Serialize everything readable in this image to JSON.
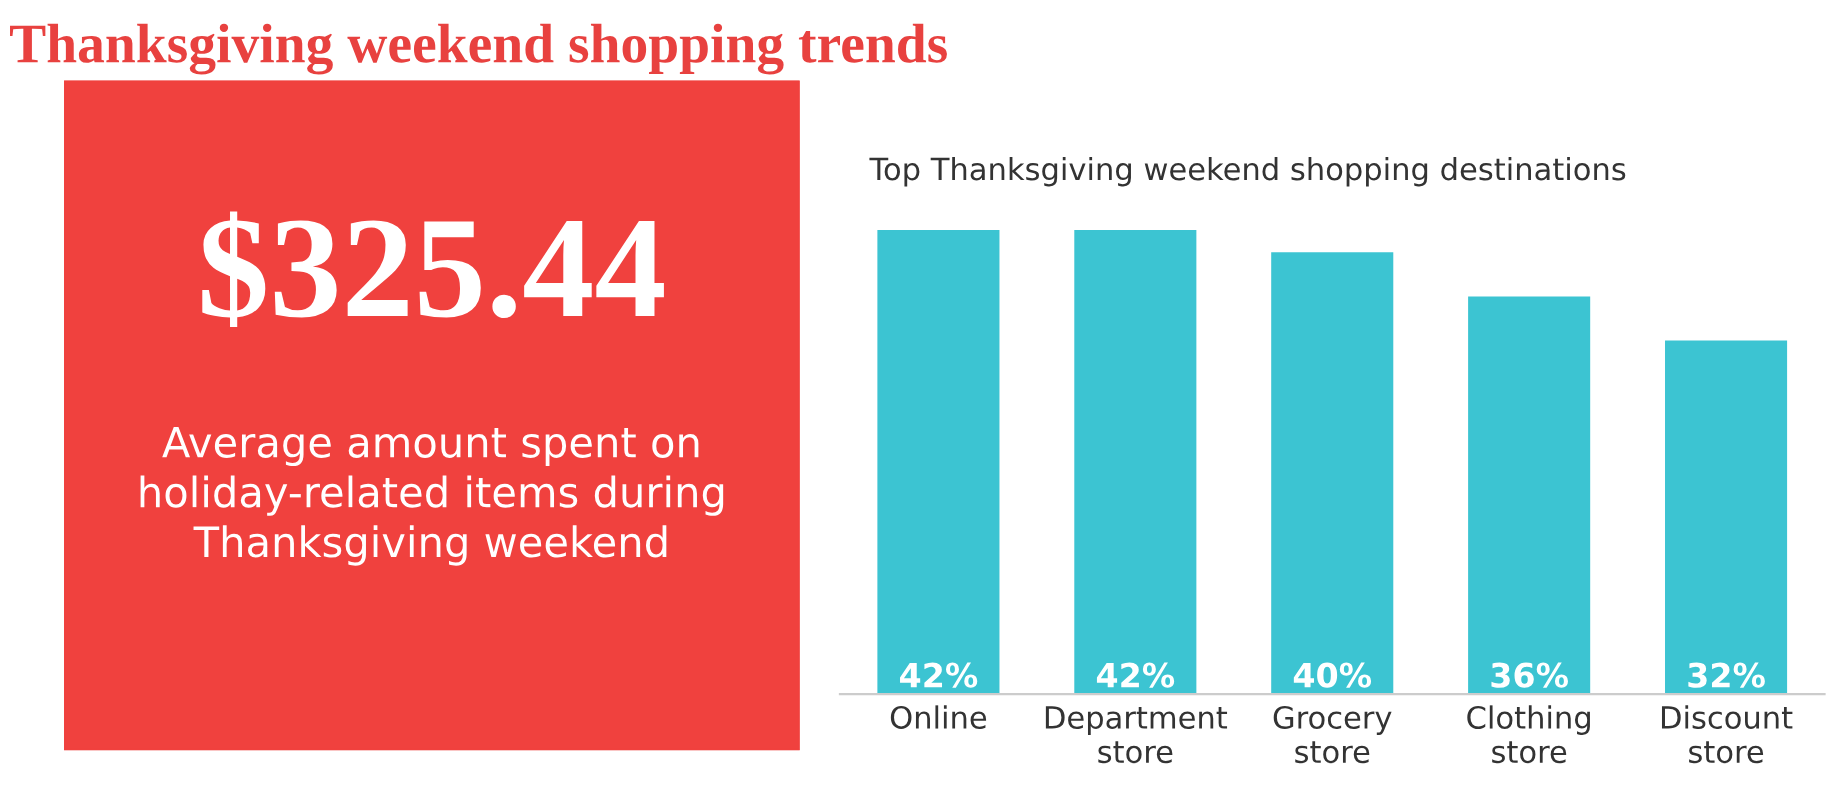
{
  "chart_data": [
    {
      "type": "other",
      "title": "Thanksgiving weekend shopping trends",
      "annotations": [
        "$325.44",
        "Average amount spent on\nholiday-related items during\nThanksgiving weekend"
      ],
      "colors": [
        "#f0413e"
      ]
    },
    {
      "type": "bar",
      "title": "Top Thanksgiving weekend shopping destinations",
      "categories": [
        "Online",
        "Department\nstore",
        "Grocery\nstore",
        "Clothing\nstore",
        "Discount\nstore"
      ],
      "values": [
        42,
        42,
        40,
        36,
        32
      ],
      "color": "#3cc4d2",
      "value_labels": [
        "42%",
        "42%",
        "40%",
        "36%",
        "32%"
      ],
      "tick_labels": "x",
      "grid": false,
      "legend": false
    }
  ]
}
